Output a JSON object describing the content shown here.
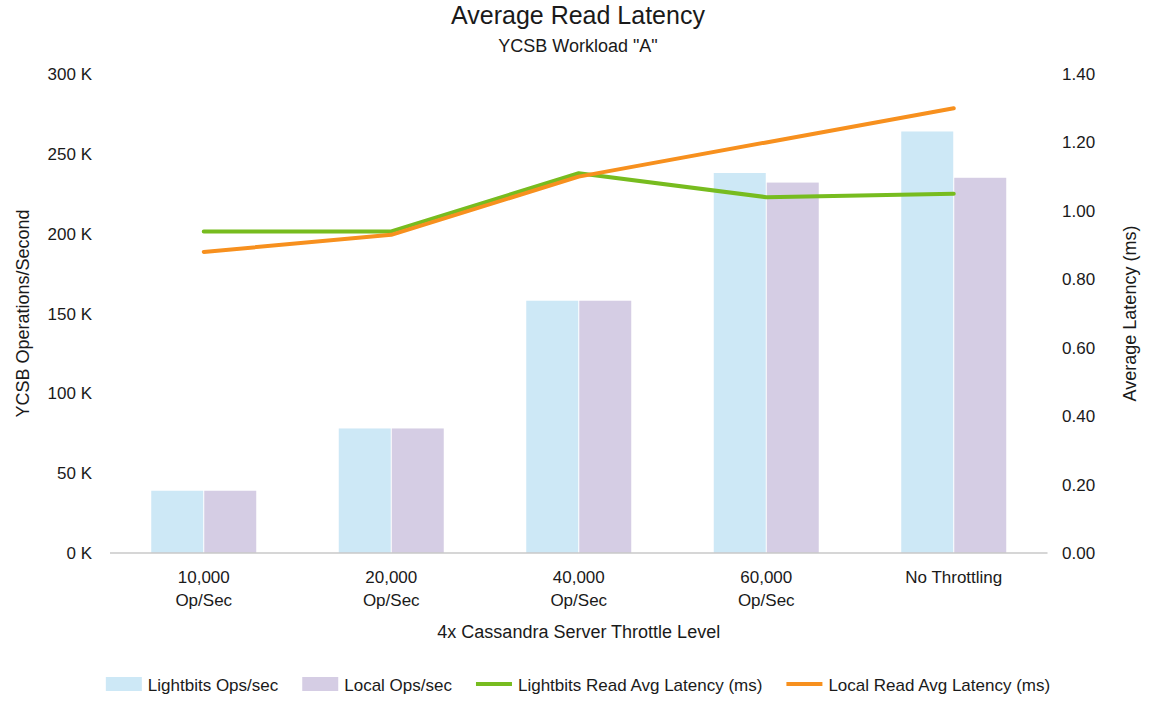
{
  "chart_data": {
    "type": "bar",
    "title": "Average Read Latency",
    "subtitle": "YCSB Workload \"A\"",
    "x_label": "4x Cassandra Server Throttle Level",
    "y_label": "YCSB Operations/Second",
    "y2_label": "Average Latency (ms)",
    "categories": [
      "10,000\nOp/Sec",
      "20,000\nOp/Sec",
      "40,000\nOp/Sec",
      "60,000\nOp/Sec",
      "No Throttling"
    ],
    "series": [
      {
        "name": "Lightbits Ops/sec",
        "type": "bar",
        "color": "#cde8f6",
        "values": [
          39000,
          78000,
          158000,
          238000,
          264000
        ]
      },
      {
        "name": "Local Ops/sec",
        "type": "bar",
        "color": "#d5cde4",
        "values": [
          39000,
          78000,
          158000,
          232000,
          235000
        ]
      },
      {
        "name": "Lightbits Read Avg Latency (ms)",
        "type": "line",
        "axis": "y2",
        "color": "#77bc1f",
        "values": [
          0.94,
          0.94,
          1.11,
          1.04,
          1.05
        ]
      },
      {
        "name": "Local Read Avg Latency (ms)",
        "type": "line",
        "axis": "y2",
        "color": "#f7901e",
        "values": [
          0.88,
          0.93,
          1.1,
          1.2,
          1.3
        ]
      }
    ],
    "ylim": [
      0,
      300000
    ],
    "yticks": [
      {
        "value": 0,
        "label": "0 K"
      },
      {
        "value": 50000,
        "label": "50 K"
      },
      {
        "value": 100000,
        "label": "100 K"
      },
      {
        "value": 150000,
        "label": "150 K"
      },
      {
        "value": 200000,
        "label": "200 K"
      },
      {
        "value": 250000,
        "label": "250 K"
      },
      {
        "value": 300000,
        "label": "300 K"
      }
    ],
    "y2lim": [
      0,
      1.4
    ],
    "y2ticks": [
      {
        "value": 0,
        "label": "0.00"
      },
      {
        "value": 0.2,
        "label": "0.20"
      },
      {
        "value": 0.4,
        "label": "0.40"
      },
      {
        "value": 0.6,
        "label": "0.60"
      },
      {
        "value": 0.8,
        "label": "0.80"
      },
      {
        "value": 1.0,
        "label": "1.00"
      },
      {
        "value": 1.2,
        "label": "1.20"
      },
      {
        "value": 1.4,
        "label": "1.40"
      }
    ],
    "grid": false,
    "legend": "bottom"
  }
}
